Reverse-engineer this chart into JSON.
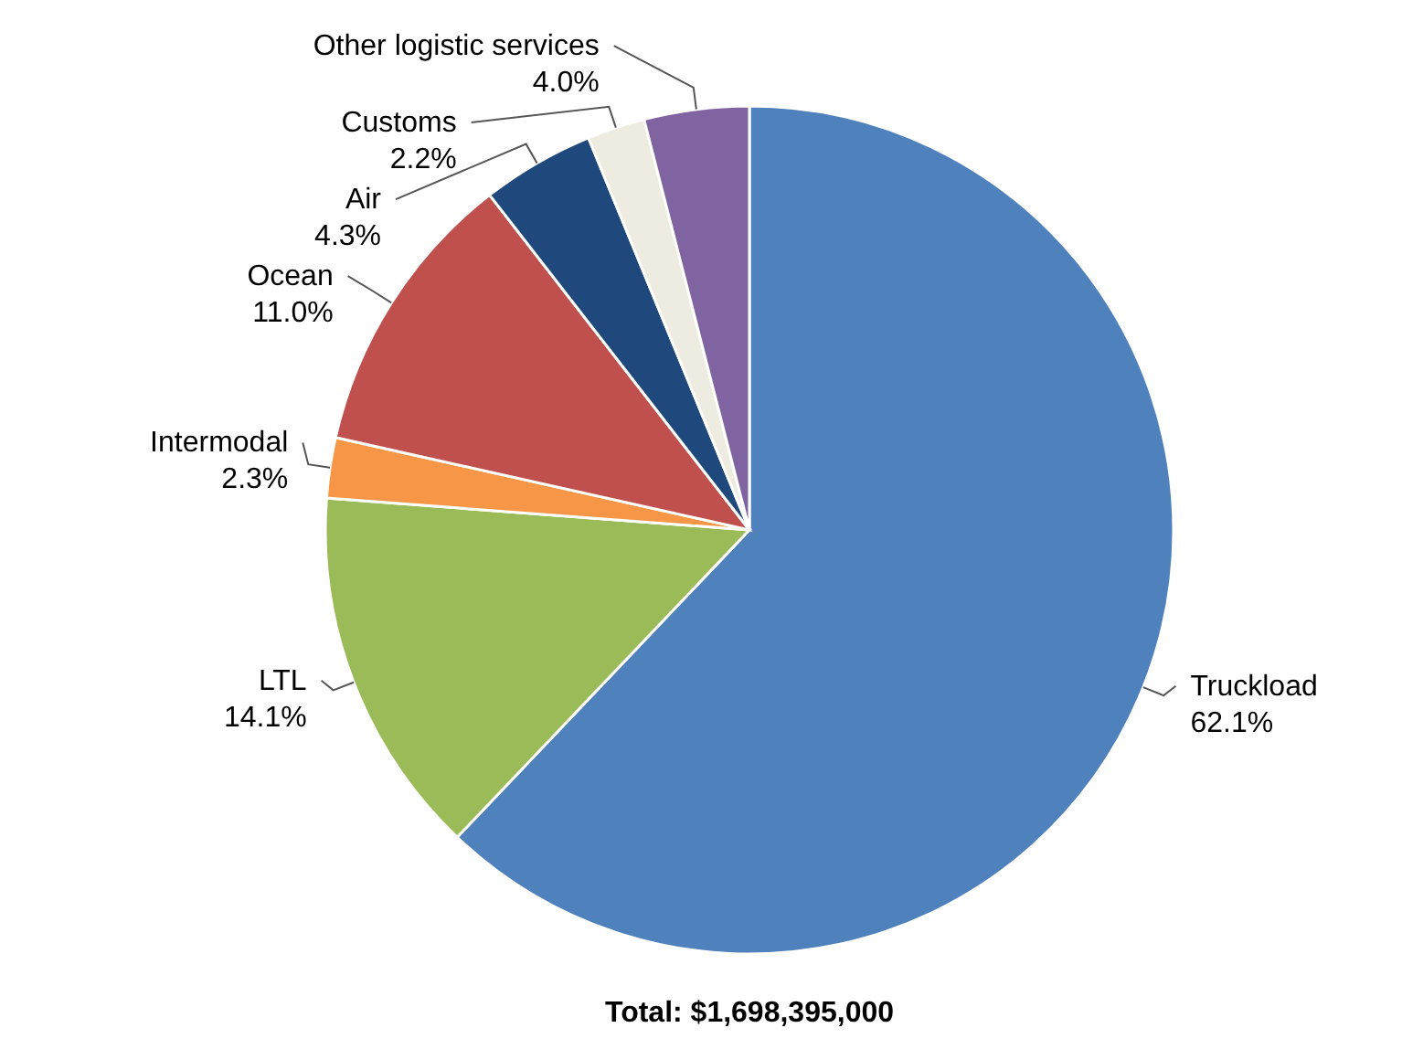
{
  "chart_data": {
    "type": "pie",
    "categories": [
      "Truckload",
      "LTL",
      "Intermodal",
      "Ocean",
      "Air",
      "Customs",
      "Other logistic services"
    ],
    "values": [
      62.1,
      14.1,
      2.3,
      11.0,
      4.3,
      2.2,
      4.0
    ],
    "value_labels": [
      "62.1%",
      "14.1%",
      "2.3%",
      "11.0%",
      "4.3%",
      "2.2%",
      "4.0%"
    ],
    "colors": [
      "#4f81bd",
      "#9bbb59",
      "#f79646",
      "#c0504d",
      "#1f497d",
      "#eeece1",
      "#8064a2"
    ],
    "annotations": [
      "Total: $1,698,395,000"
    ]
  }
}
